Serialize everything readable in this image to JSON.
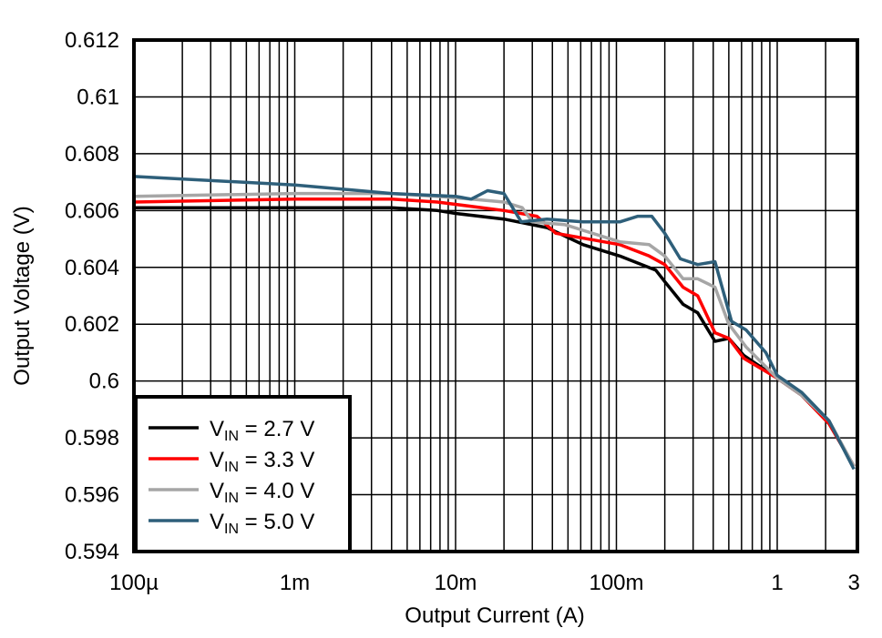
{
  "chart_data": {
    "type": "line",
    "title": "",
    "xlabel": "Output Current (A)",
    "ylabel": "Output Voltage (V)",
    "xscale": "log",
    "xlim": [
      0.0001,
      3
    ],
    "ylim": [
      0.594,
      0.612
    ],
    "grid": true,
    "legend_position": "bottom-left",
    "x_ticks": [
      {
        "value": 0.0001,
        "label": "100µ"
      },
      {
        "value": 0.001,
        "label": "1m"
      },
      {
        "value": 0.01,
        "label": "10m"
      },
      {
        "value": 0.1,
        "label": "100m"
      },
      {
        "value": 1,
        "label": "1"
      },
      {
        "value": 3,
        "label": "3"
      }
    ],
    "y_ticks": [
      {
        "value": 0.594,
        "label": "0.594"
      },
      {
        "value": 0.596,
        "label": "0.596"
      },
      {
        "value": 0.598,
        "label": "0.598"
      },
      {
        "value": 0.6,
        "label": "0.6"
      },
      {
        "value": 0.602,
        "label": "0.602"
      },
      {
        "value": 0.604,
        "label": "0.604"
      },
      {
        "value": 0.606,
        "label": "0.606"
      },
      {
        "value": 0.608,
        "label": "0.608"
      },
      {
        "value": 0.61,
        "label": "0.61"
      },
      {
        "value": 0.612,
        "label": "0.612"
      }
    ],
    "series": [
      {
        "name_main": "V",
        "name_sub": "IN",
        "name_rest": " = 2.7 V",
        "color": "#000000",
        "points": [
          [
            0.0001,
            0.6061
          ],
          [
            0.001,
            0.6061
          ],
          [
            0.004,
            0.6061
          ],
          [
            0.0077,
            0.606
          ],
          [
            0.01,
            0.6059
          ],
          [
            0.02,
            0.6057
          ],
          [
            0.037,
            0.6054
          ],
          [
            0.062,
            0.6048
          ],
          [
            0.105,
            0.6044
          ],
          [
            0.176,
            0.6039
          ],
          [
            0.2,
            0.6035
          ],
          [
            0.26,
            0.6027
          ],
          [
            0.32,
            0.6024
          ],
          [
            0.41,
            0.6014
          ],
          [
            0.5,
            0.6015
          ],
          [
            0.62,
            0.6009
          ],
          [
            1.0,
            0.6001
          ],
          [
            1.42,
            0.5995
          ],
          [
            2.1,
            0.5985
          ],
          [
            3.0,
            0.597
          ]
        ]
      },
      {
        "name_main": "V",
        "name_sub": "IN",
        "name_rest": " = 3.3 V",
        "color": "#ff0000",
        "points": [
          [
            0.0001,
            0.6063
          ],
          [
            0.001,
            0.6064
          ],
          [
            0.004,
            0.6064
          ],
          [
            0.0077,
            0.6063
          ],
          [
            0.02,
            0.606
          ],
          [
            0.032,
            0.6058
          ],
          [
            0.042,
            0.6052
          ],
          [
            0.105,
            0.6048
          ],
          [
            0.16,
            0.6044
          ],
          [
            0.2,
            0.6041
          ],
          [
            0.26,
            0.6033
          ],
          [
            0.32,
            0.603
          ],
          [
            0.41,
            0.6017
          ],
          [
            0.5,
            0.6015
          ],
          [
            0.62,
            0.6008
          ],
          [
            1.0,
            0.6001
          ],
          [
            1.42,
            0.5995
          ],
          [
            2.1,
            0.5985
          ],
          [
            3.0,
            0.597
          ]
        ]
      },
      {
        "name_main": "V",
        "name_sub": "IN",
        "name_rest": " = 4.0 V",
        "color": "#a6a6a6",
        "points": [
          [
            0.0001,
            0.6065
          ],
          [
            0.001,
            0.6066
          ],
          [
            0.004,
            0.6066
          ],
          [
            0.0077,
            0.6065
          ],
          [
            0.0125,
            0.6064
          ],
          [
            0.02,
            0.6063
          ],
          [
            0.026,
            0.6061
          ],
          [
            0.03,
            0.6056
          ],
          [
            0.048,
            0.6055
          ],
          [
            0.105,
            0.6049
          ],
          [
            0.16,
            0.6048
          ],
          [
            0.2,
            0.6044
          ],
          [
            0.26,
            0.6036
          ],
          [
            0.32,
            0.6036
          ],
          [
            0.41,
            0.6033
          ],
          [
            0.5,
            0.602
          ],
          [
            0.64,
            0.6012
          ],
          [
            1.0,
            0.6001
          ],
          [
            1.42,
            0.5995
          ],
          [
            2.1,
            0.5986
          ],
          [
            3.0,
            0.597
          ]
        ]
      },
      {
        "name_main": "V",
        "name_sub": "IN",
        "name_rest": " = 5.0 V",
        "color": "#2e5f7a",
        "points": [
          [
            0.0001,
            0.6072
          ],
          [
            0.001,
            0.6069
          ],
          [
            0.004,
            0.6066
          ],
          [
            0.01,
            0.6065
          ],
          [
            0.0125,
            0.6064
          ],
          [
            0.0158,
            0.6067
          ],
          [
            0.02,
            0.6066
          ],
          [
            0.0256,
            0.6056
          ],
          [
            0.037,
            0.6057
          ],
          [
            0.062,
            0.6056
          ],
          [
            0.105,
            0.6056
          ],
          [
            0.136,
            0.6058
          ],
          [
            0.166,
            0.6058
          ],
          [
            0.2,
            0.6052
          ],
          [
            0.25,
            0.6043
          ],
          [
            0.32,
            0.6041
          ],
          [
            0.41,
            0.6042
          ],
          [
            0.52,
            0.6021
          ],
          [
            0.64,
            0.6018
          ],
          [
            0.85,
            0.601
          ],
          [
            1.0,
            0.6002
          ],
          [
            1.42,
            0.5996
          ],
          [
            2.1,
            0.5986
          ],
          [
            3.0,
            0.5969
          ]
        ]
      }
    ]
  }
}
